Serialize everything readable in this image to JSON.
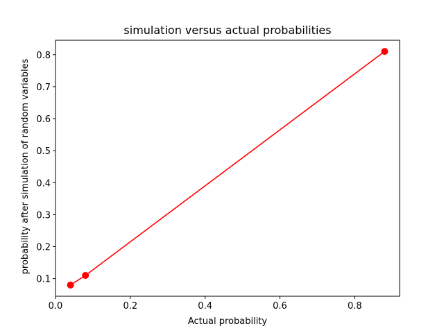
{
  "chart_data": {
    "type": "line",
    "title": "simulation versus actual probabilities",
    "xlabel": "Actual probability",
    "ylabel": "probability after simulation of random variables",
    "xlim": [
      0.0,
      0.92
    ],
    "ylim": [
      0.045,
      0.845
    ],
    "x_ticks": [
      0.0,
      0.2,
      0.4,
      0.6,
      0.8
    ],
    "x_tick_labels": [
      "0.0",
      "0.2",
      "0.4",
      "0.6",
      "0.8"
    ],
    "y_ticks": [
      0.1,
      0.2,
      0.3,
      0.4,
      0.5,
      0.6,
      0.7,
      0.8
    ],
    "y_tick_labels": [
      "0.1",
      "0.2",
      "0.3",
      "0.4",
      "0.5",
      "0.6",
      "0.7",
      "0.8"
    ],
    "grid": false,
    "series": [
      {
        "color": "#ff0000",
        "marker": "circle",
        "x": [
          0.04,
          0.08,
          0.88
        ],
        "y": [
          0.08,
          0.11,
          0.81
        ]
      }
    ]
  }
}
